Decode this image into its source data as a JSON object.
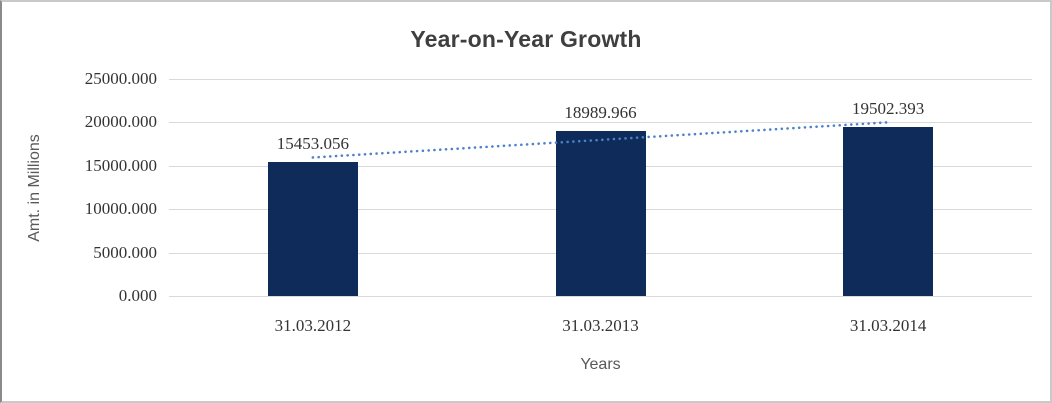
{
  "chart_data": {
    "type": "bar",
    "title": "Year-on-Year Growth",
    "categories": [
      "31.03.2012",
      "31.03.2013",
      "31.03.2014"
    ],
    "values": [
      15453.056,
      18989.966,
      19502.393
    ],
    "value_labels": [
      "15453.056",
      "18989.966",
      "19502.393"
    ],
    "xlabel": "Years",
    "ylabel": "Amt. in Millions",
    "ylim": [
      0,
      25000
    ],
    "ytick_step": 5000,
    "ytick_labels": [
      "0.000",
      "5000.000",
      "10000.000",
      "15000.000",
      "20000.000",
      "25000.000"
    ],
    "grid": true,
    "legend": "none",
    "trendline": {
      "type": "linear",
      "style": "dotted"
    },
    "colors": {
      "bar": "#0e2b5a",
      "trendline": "#4a82c8",
      "gridline": "#d9d9d9",
      "title_text": "#3f3f3f",
      "tick_text": "#333333",
      "axis_title_text": "#595959"
    }
  }
}
